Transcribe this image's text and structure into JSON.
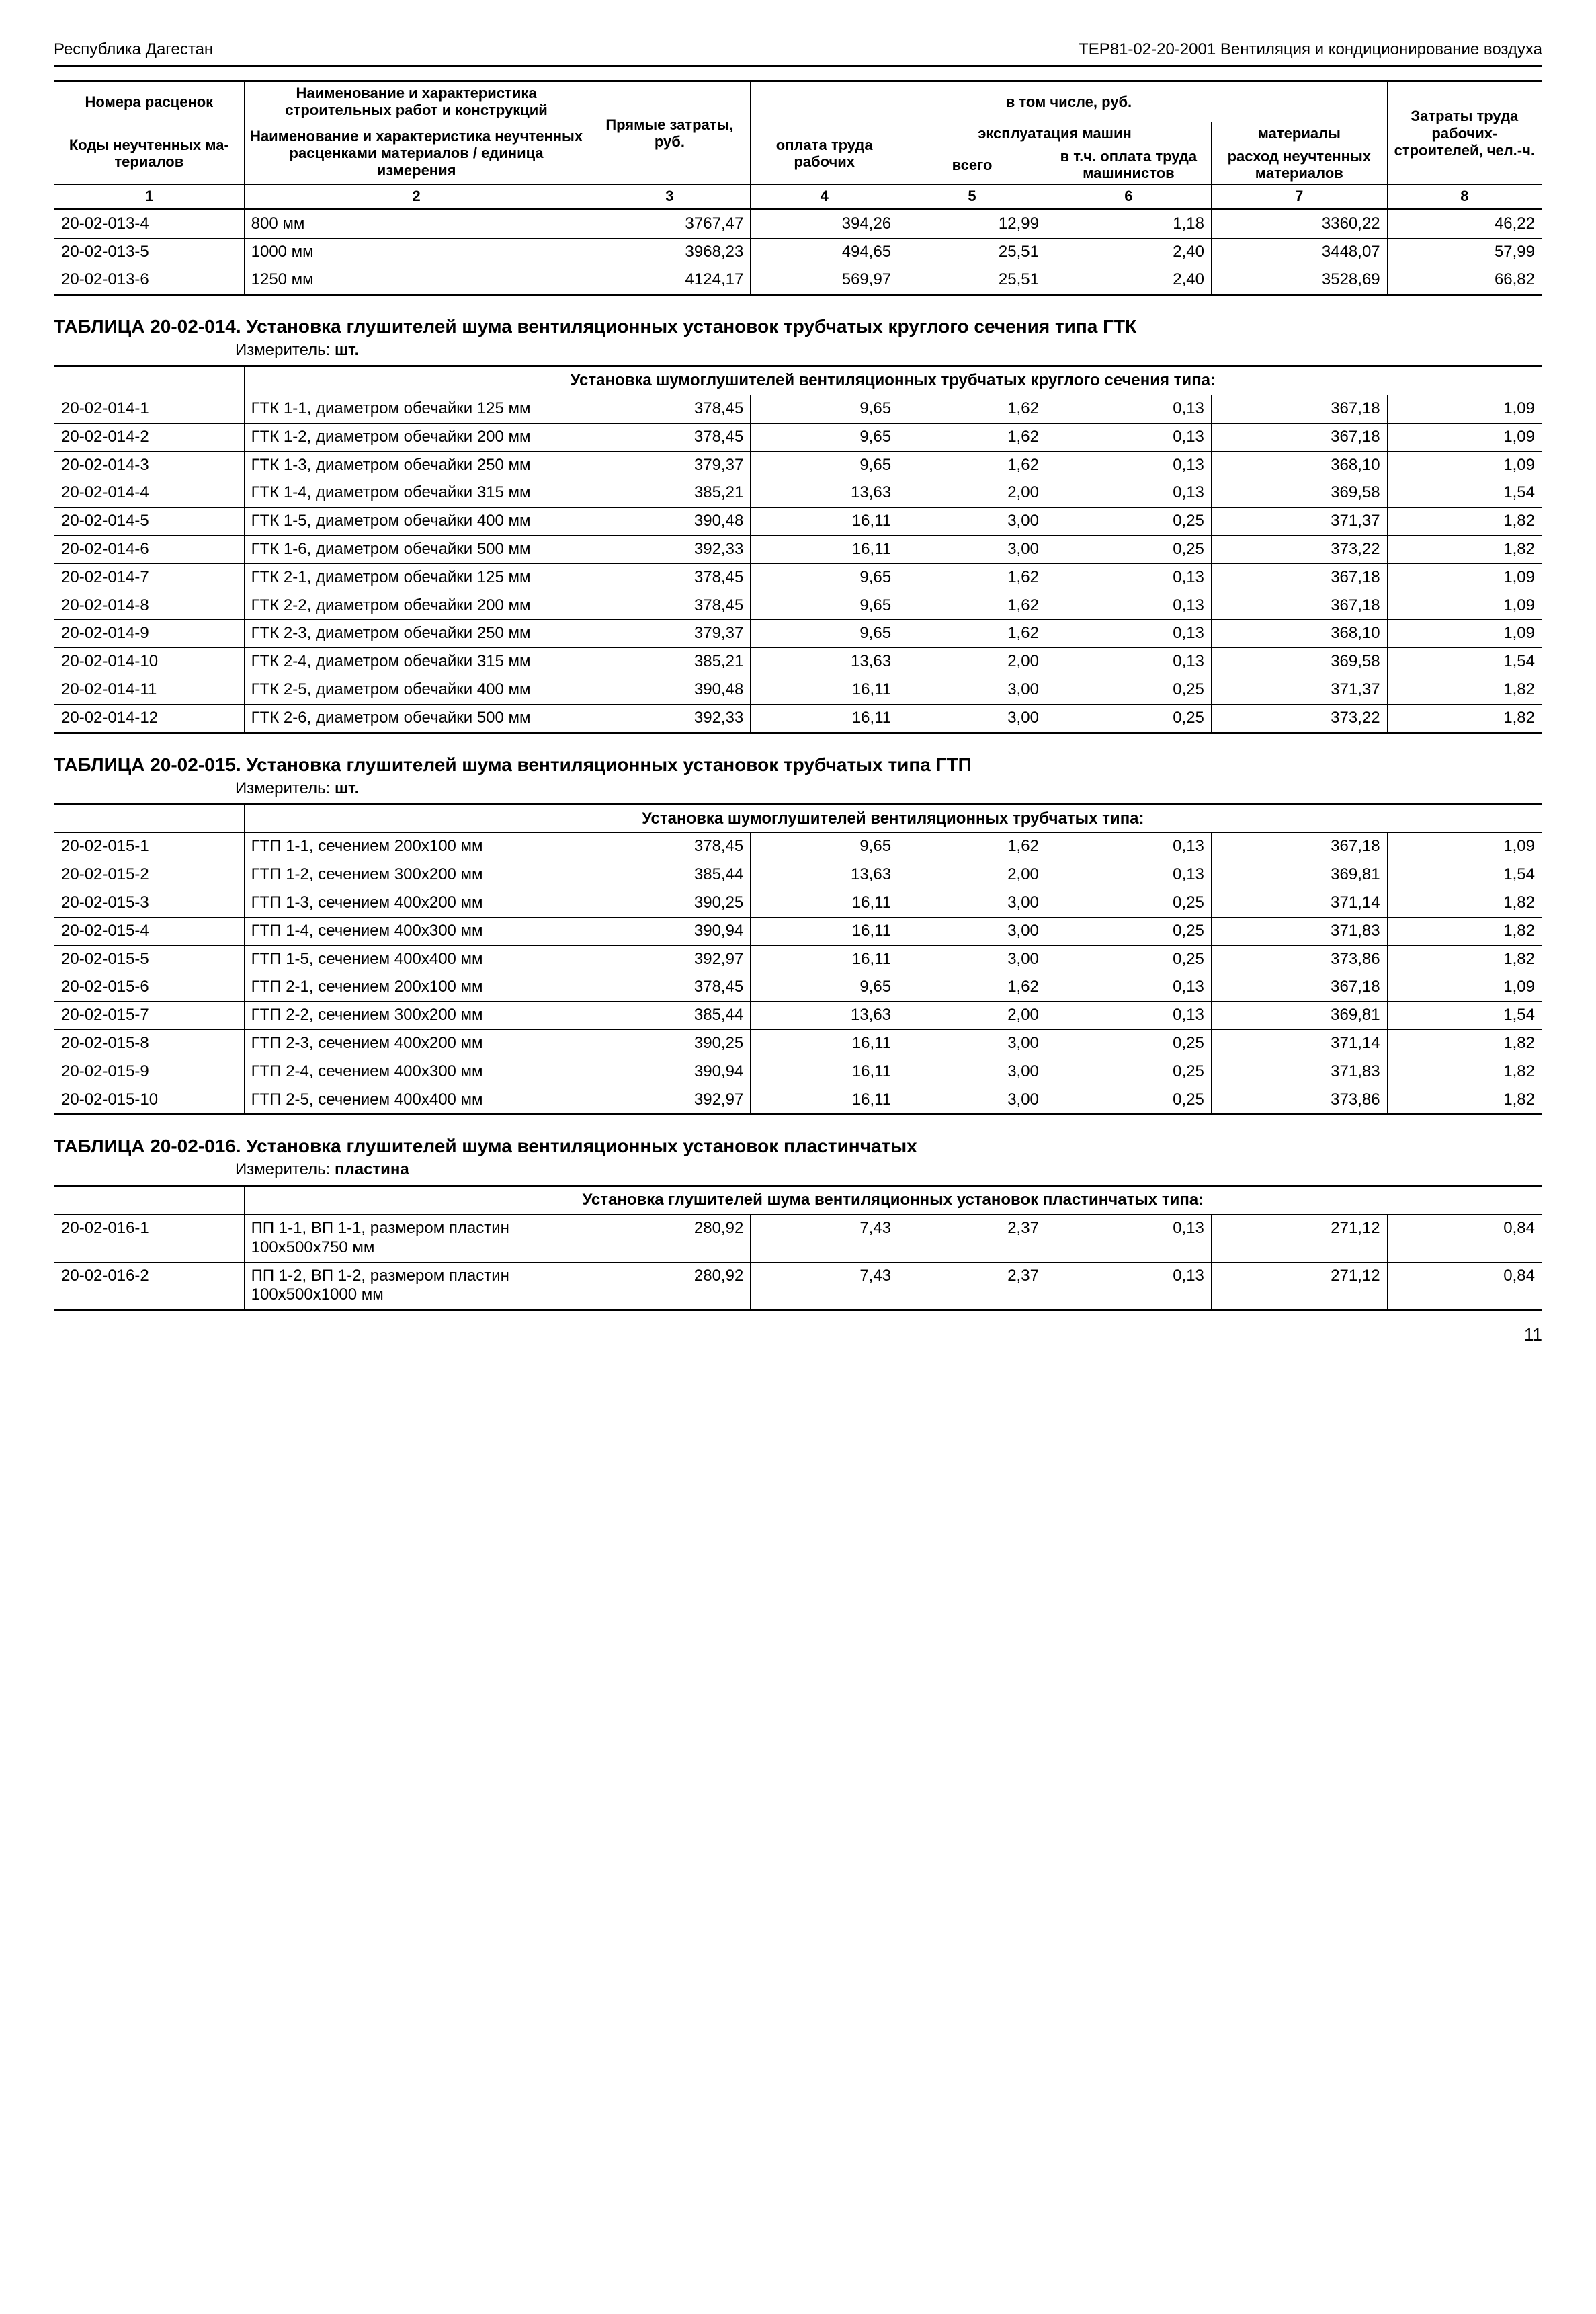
{
  "header": {
    "left": "Республика Дагестан",
    "right": "ТЕР81-02-20-2001 Вентиляция и кондиционирование воздуха"
  },
  "columns": {
    "h1_a": "Номера расценок",
    "h1_b": "Коды неучтенных ма­териалов",
    "h2_a": "Наименование и характеристика строительных работ и конструкций",
    "h2_b": "Наименование и характеристика не­учтенных расценками материалов / единица измерения",
    "h3": "Прямые затраты, руб.",
    "group": "в том числе, руб.",
    "h4": "оплата труда рабочих",
    "sub_machines": "эксплуатация машин",
    "h5": "всего",
    "h6": "в т.ч. опла­та труда машинистов",
    "sub_materials": "материалы",
    "h7": "расход неучтенных материалов",
    "h8": "Затраты труда рабочих-строителей, чел.-ч.",
    "n1": "1",
    "n2": "2",
    "n3": "3",
    "n4": "4",
    "n5": "5",
    "n6": "6",
    "n7": "7",
    "n8": "8"
  },
  "top_rows": [
    {
      "c1": "20-02-013-4",
      "c2": "800 мм",
      "c3": "3767,47",
      "c4": "394,26",
      "c5": "12,99",
      "c6": "1,18",
      "c7": "3360,22",
      "c8": "46,22"
    },
    {
      "c1": "20-02-013-5",
      "c2": "1000 мм",
      "c3": "3968,23",
      "c4": "494,65",
      "c5": "25,51",
      "c6": "2,40",
      "c7": "3448,07",
      "c8": "57,99"
    },
    {
      "c1": "20-02-013-6",
      "c2": "1250 мм",
      "c3": "4124,17",
      "c4": "569,97",
      "c5": "25,51",
      "c6": "2,40",
      "c7": "3528,69",
      "c8": "66,82"
    }
  ],
  "s014": {
    "title": "ТАБЛИЦА  20-02-014.  Установка глушителей шума вентиляционных установок трубчатых круглого сечения типа ГТК",
    "measure_label": "Измеритель:",
    "measure_value": "шт.",
    "heading": "Установка шумоглушителей вентиляционных трубчатых круглого сечения типа:",
    "rows": [
      {
        "c1": "20-02-014-1",
        "c2": "ГТК 1-1, диаметром обечайки 125 мм",
        "c3": "378,45",
        "c4": "9,65",
        "c5": "1,62",
        "c6": "0,13",
        "c7": "367,18",
        "c8": "1,09"
      },
      {
        "c1": "20-02-014-2",
        "c2": "ГТК 1-2, диаметром обечайки 200 мм",
        "c3": "378,45",
        "c4": "9,65",
        "c5": "1,62",
        "c6": "0,13",
        "c7": "367,18",
        "c8": "1,09"
      },
      {
        "c1": "20-02-014-3",
        "c2": "ГТК 1-3, диаметром обечайки 250 мм",
        "c3": "379,37",
        "c4": "9,65",
        "c5": "1,62",
        "c6": "0,13",
        "c7": "368,10",
        "c8": "1,09"
      },
      {
        "c1": "20-02-014-4",
        "c2": "ГТК 1-4, диаметром обечайки 315 мм",
        "c3": "385,21",
        "c4": "13,63",
        "c5": "2,00",
        "c6": "0,13",
        "c7": "369,58",
        "c8": "1,54"
      },
      {
        "c1": "20-02-014-5",
        "c2": "ГТК 1-5, диаметром обечайки 400 мм",
        "c3": "390,48",
        "c4": "16,11",
        "c5": "3,00",
        "c6": "0,25",
        "c7": "371,37",
        "c8": "1,82"
      },
      {
        "c1": "20-02-014-6",
        "c2": "ГТК 1-6, диаметром обечайки 500 мм",
        "c3": "392,33",
        "c4": "16,11",
        "c5": "3,00",
        "c6": "0,25",
        "c7": "373,22",
        "c8": "1,82"
      },
      {
        "c1": "20-02-014-7",
        "c2": "ГТК 2-1, диаметром обечайки 125 мм",
        "c3": "378,45",
        "c4": "9,65",
        "c5": "1,62",
        "c6": "0,13",
        "c7": "367,18",
        "c8": "1,09"
      },
      {
        "c1": "20-02-014-8",
        "c2": "ГТК 2-2, диаметром обечайки 200 мм",
        "c3": "378,45",
        "c4": "9,65",
        "c5": "1,62",
        "c6": "0,13",
        "c7": "367,18",
        "c8": "1,09"
      },
      {
        "c1": "20-02-014-9",
        "c2": "ГТК 2-3, диаметром обечайки 250 мм",
        "c3": "379,37",
        "c4": "9,65",
        "c5": "1,62",
        "c6": "0,13",
        "c7": "368,10",
        "c8": "1,09"
      },
      {
        "c1": "20-02-014-10",
        "c2": "ГТК 2-4, диаметром обечайки 315 мм",
        "c3": "385,21",
        "c4": "13,63",
        "c5": "2,00",
        "c6": "0,13",
        "c7": "369,58",
        "c8": "1,54"
      },
      {
        "c1": "20-02-014-11",
        "c2": "ГТК 2-5, диаметром обечайки 400 мм",
        "c3": "390,48",
        "c4": "16,11",
        "c5": "3,00",
        "c6": "0,25",
        "c7": "371,37",
        "c8": "1,82"
      },
      {
        "c1": "20-02-014-12",
        "c2": "ГТК 2-6, диаметром обечайки 500 мм",
        "c3": "392,33",
        "c4": "16,11",
        "c5": "3,00",
        "c6": "0,25",
        "c7": "373,22",
        "c8": "1,82"
      }
    ]
  },
  "s015": {
    "title": "ТАБЛИЦА  20-02-015.  Установка глушителей шума вентиляционных установок трубчатых типа ГТП",
    "measure_label": "Измеритель:",
    "measure_value": "шт.",
    "heading": "Установка шумоглушителей вентиляционных трубчатых типа:",
    "rows": [
      {
        "c1": "20-02-015-1",
        "c2": "ГТП 1-1, сечением 200х100 мм",
        "c3": "378,45",
        "c4": "9,65",
        "c5": "1,62",
        "c6": "0,13",
        "c7": "367,18",
        "c8": "1,09"
      },
      {
        "c1": "20-02-015-2",
        "c2": "ГТП 1-2, сечением 300х200 мм",
        "c3": "385,44",
        "c4": "13,63",
        "c5": "2,00",
        "c6": "0,13",
        "c7": "369,81",
        "c8": "1,54"
      },
      {
        "c1": "20-02-015-3",
        "c2": "ГТП 1-3, сечением 400х200 мм",
        "c3": "390,25",
        "c4": "16,11",
        "c5": "3,00",
        "c6": "0,25",
        "c7": "371,14",
        "c8": "1,82"
      },
      {
        "c1": "20-02-015-4",
        "c2": "ГТП 1-4, сечением 400х300 мм",
        "c3": "390,94",
        "c4": "16,11",
        "c5": "3,00",
        "c6": "0,25",
        "c7": "371,83",
        "c8": "1,82"
      },
      {
        "c1": "20-02-015-5",
        "c2": "ГТП 1-5, сечением 400х400 мм",
        "c3": "392,97",
        "c4": "16,11",
        "c5": "3,00",
        "c6": "0,25",
        "c7": "373,86",
        "c8": "1,82"
      },
      {
        "c1": "20-02-015-6",
        "c2": "ГТП 2-1, сечением 200х100 мм",
        "c3": "378,45",
        "c4": "9,65",
        "c5": "1,62",
        "c6": "0,13",
        "c7": "367,18",
        "c8": "1,09"
      },
      {
        "c1": "20-02-015-7",
        "c2": "ГТП 2-2, сечением 300х200 мм",
        "c3": "385,44",
        "c4": "13,63",
        "c5": "2,00",
        "c6": "0,13",
        "c7": "369,81",
        "c8": "1,54"
      },
      {
        "c1": "20-02-015-8",
        "c2": "ГТП 2-3, сечением 400х200 мм",
        "c3": "390,25",
        "c4": "16,11",
        "c5": "3,00",
        "c6": "0,25",
        "c7": "371,14",
        "c8": "1,82"
      },
      {
        "c1": "20-02-015-9",
        "c2": "ГТП 2-4, сечением 400х300 мм",
        "c3": "390,94",
        "c4": "16,11",
        "c5": "3,00",
        "c6": "0,25",
        "c7": "371,83",
        "c8": "1,82"
      },
      {
        "c1": "20-02-015-10",
        "c2": "ГТП 2-5, сечением 400х400 мм",
        "c3": "392,97",
        "c4": "16,11",
        "c5": "3,00",
        "c6": "0,25",
        "c7": "373,86",
        "c8": "1,82"
      }
    ]
  },
  "s016": {
    "title": "ТАБЛИЦА  20-02-016.  Установка глушителей шума вентиляционных установок пла­стинчатых",
    "measure_label": "Измеритель:",
    "measure_value": "пластина",
    "heading": "Установка глушителей шума вентиляционных установок пластинчатых типа:",
    "rows": [
      {
        "c1": "20-02-016-1",
        "c2": "ПП 1-1, ВП 1-1, размером пла­стин 100х500х750 мм",
        "c3": "280,92",
        "c4": "7,43",
        "c5": "2,37",
        "c6": "0,13",
        "c7": "271,12",
        "c8": "0,84"
      },
      {
        "c1": "20-02-016-2",
        "c2": "ПП 1-2, ВП 1-2, размером пла­стин 100х500х1000 мм",
        "c3": "280,92",
        "c4": "7,43",
        "c5": "2,37",
        "c6": "0,13",
        "c7": "271,12",
        "c8": "0,84"
      }
    ]
  },
  "page_number": "11"
}
